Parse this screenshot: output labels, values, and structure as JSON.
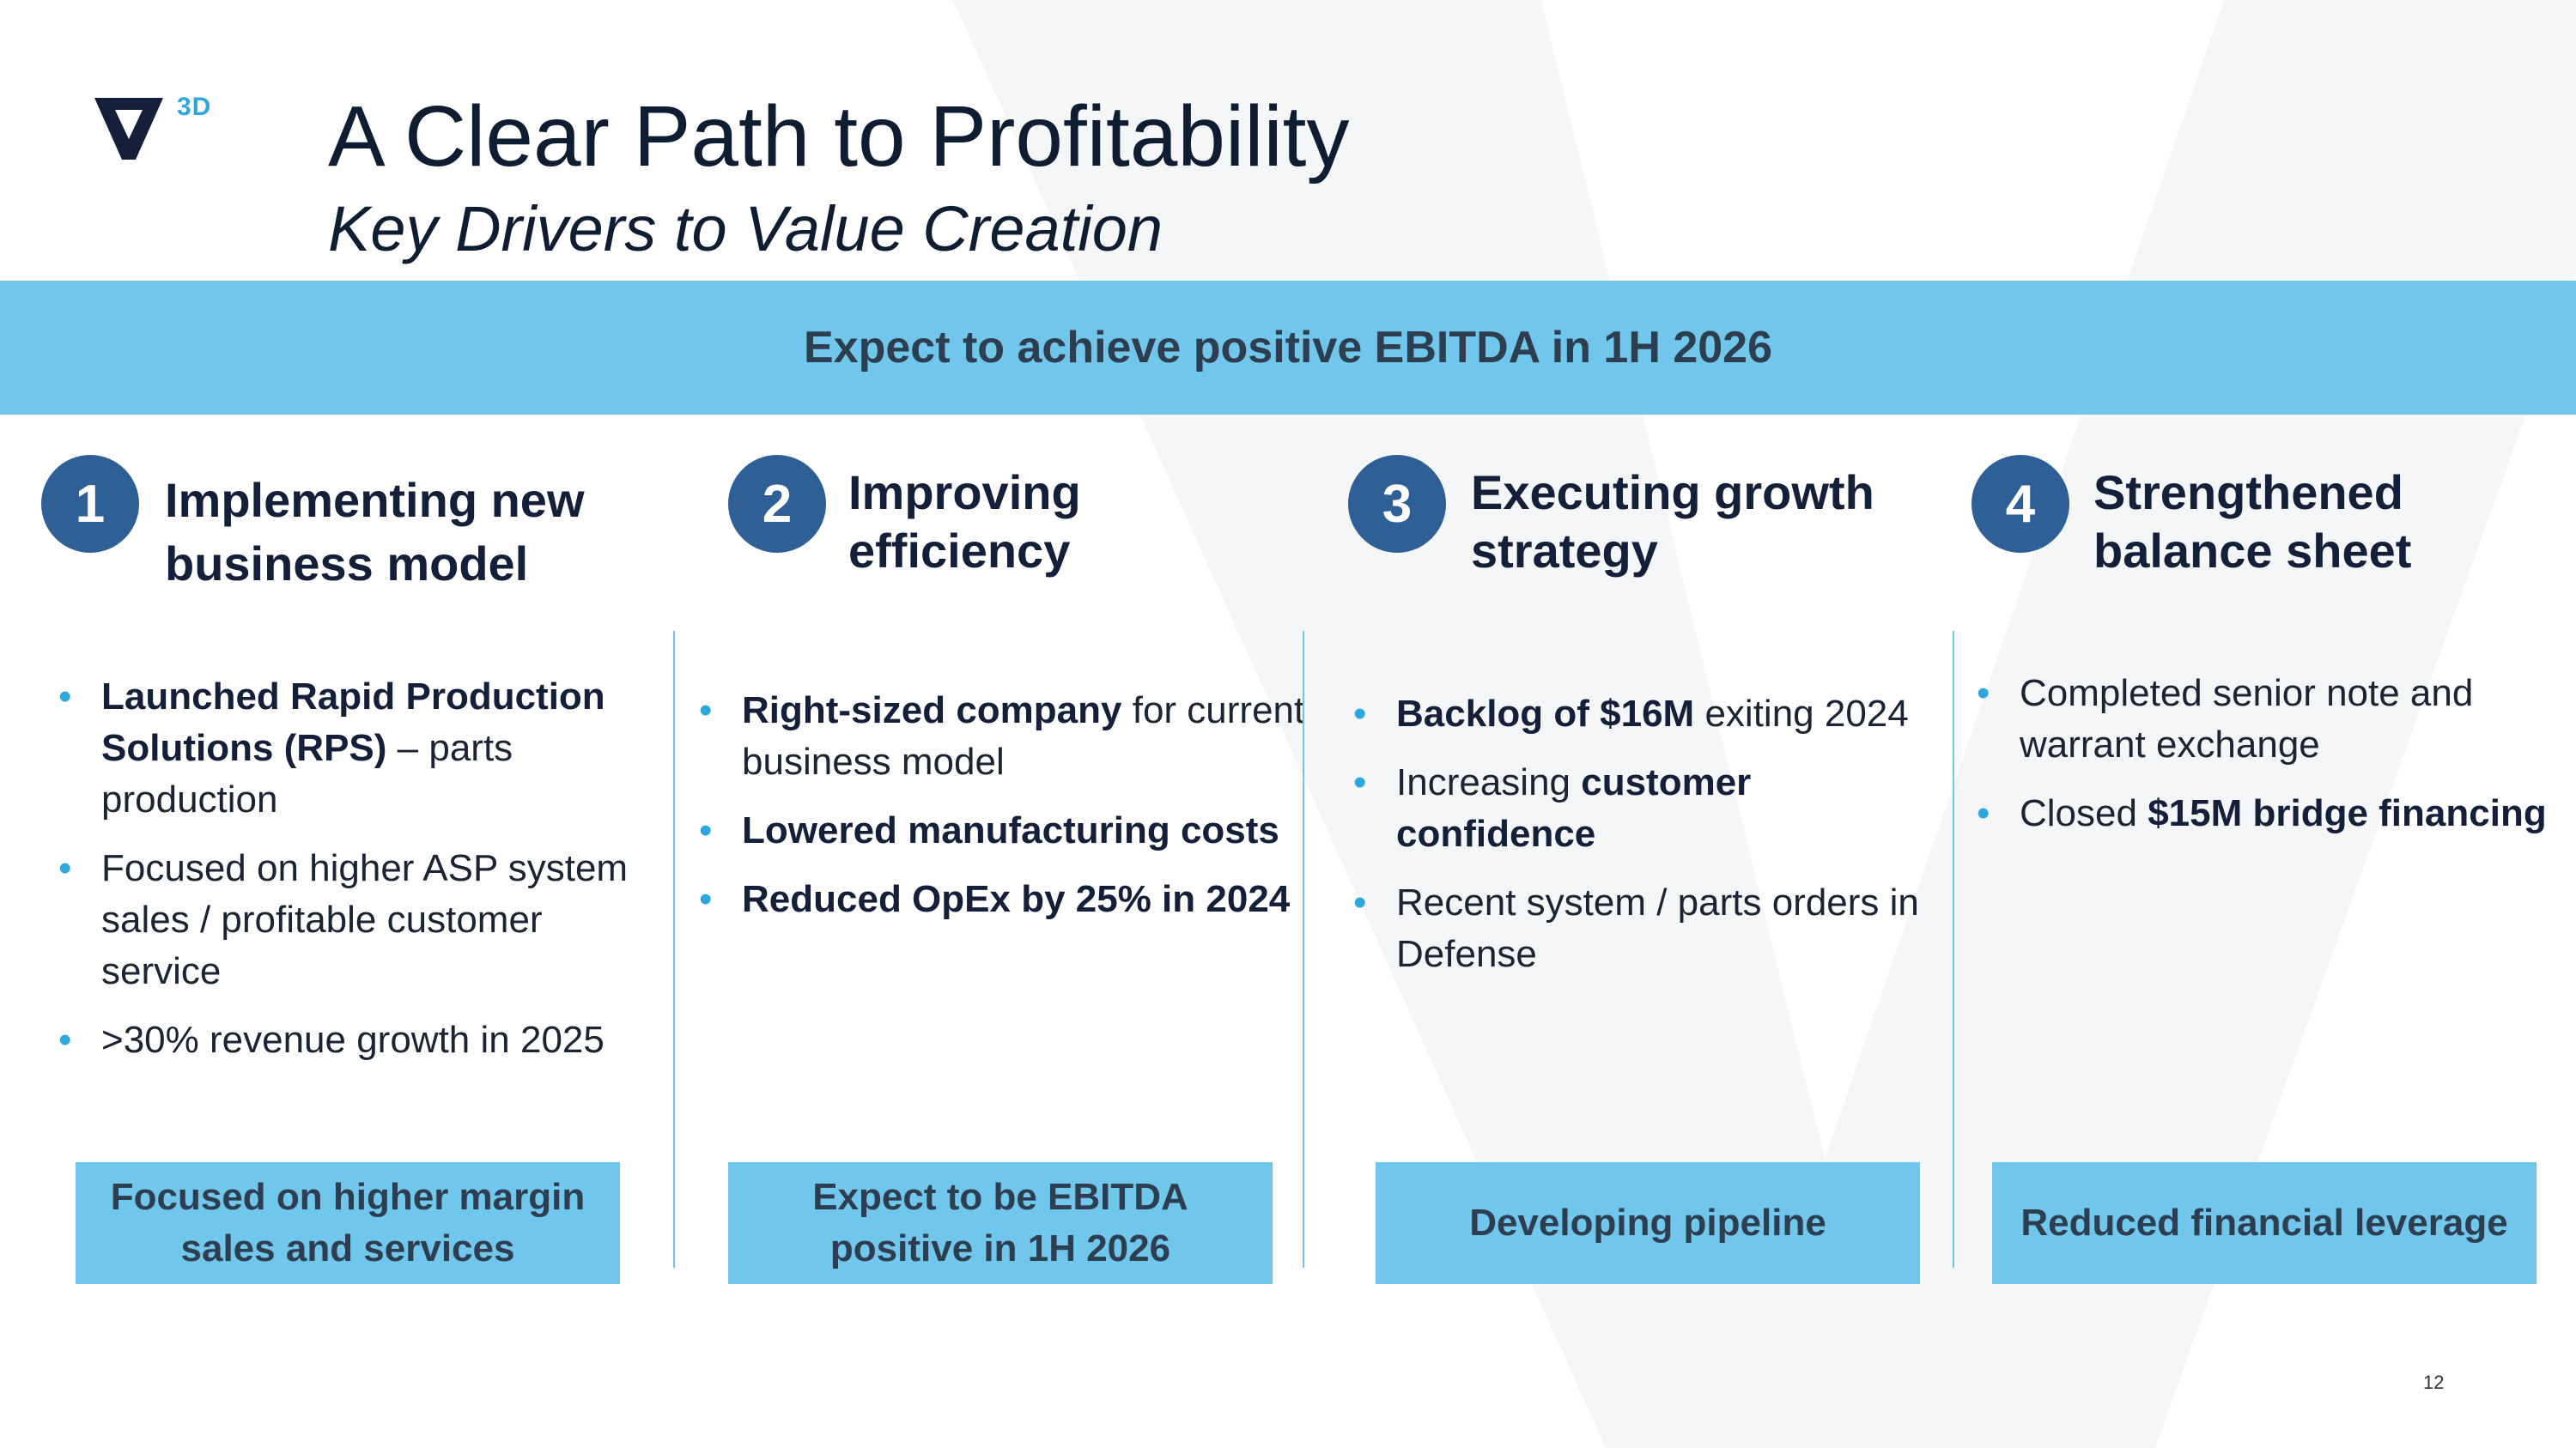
{
  "logo": {
    "text": "3D"
  },
  "header": {
    "title": "A Clear Path to Profitability",
    "subtitle": "Key Drivers to Value Creation"
  },
  "banner": {
    "text": "Expect to achieve positive EBITDA in 1H 2026"
  },
  "columns": [
    {
      "number": "1",
      "heading_line1": "Implementing new",
      "heading_line2": "business model",
      "bullets": [
        {
          "b1": "Launched Rapid Production Solutions (RPS)",
          "t1": " – parts production"
        },
        {
          "t1": "Focused on higher ASP system sales / profitable customer service"
        },
        {
          "t1": ">30% revenue growth in 2025"
        }
      ],
      "box_line1": "Focused on higher margin",
      "box_line2": "sales and services"
    },
    {
      "number": "2",
      "heading_line1": "Improving",
      "heading_line2": "efficiency",
      "bullets": [
        {
          "b1": "Right-sized company",
          "t1": " for current business model"
        },
        {
          "b1": "Lowered manufacturing costs"
        },
        {
          "b1": "Reduced OpEx by 25% in 2024"
        }
      ],
      "box_line1": "Expect to be EBITDA",
      "box_line2": "positive in 1H 2026"
    },
    {
      "number": "3",
      "heading_line1": "Executing growth",
      "heading_line2": "strategy",
      "bullets": [
        {
          "b1": "Backlog of $16M",
          "t1": " exiting 2024"
        },
        {
          "t1": "Increasing ",
          "b1": "customer confidence"
        },
        {
          "t1": "Recent system / parts orders in Defense"
        }
      ],
      "box_line1": "Developing pipeline"
    },
    {
      "number": "4",
      "heading_line1": "Strengthened",
      "heading_line2": "balance sheet",
      "bullets": [
        {
          "t1": "Completed senior note and warrant exchange"
        },
        {
          "t1": "Closed ",
          "b1": "$15M bridge financing"
        }
      ],
      "box_line1": "Reduced financial leverage"
    }
  ],
  "page_number": "12",
  "colors": {
    "accent_blue": "#71c6ec",
    "circle_blue": "#2f5f97",
    "bullet_blue": "#2fa6dc",
    "title_navy": "#0f1d33"
  }
}
